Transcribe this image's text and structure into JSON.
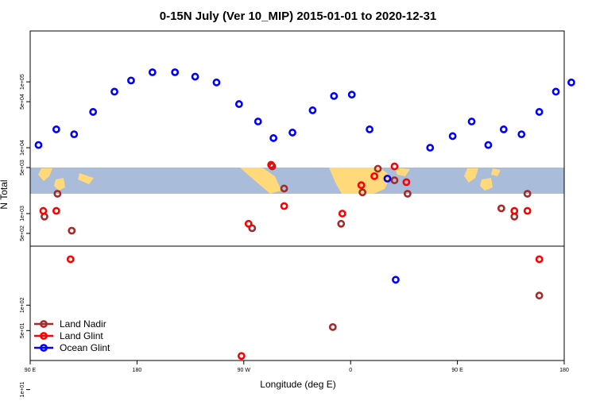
{
  "chart_data": {
    "type": "scatter",
    "title": "0-15N July (Ver 10_MIP)   2015-01-01 to 2020-12-31",
    "xlabel": "Longitude (deg E)",
    "ylabel": "N Total",
    "x_ticks": [
      {
        "value": 90,
        "label": "90 E"
      },
      {
        "value": 180,
        "label": "180"
      },
      {
        "value": 270,
        "label": "90 W"
      },
      {
        "value": 360,
        "label": "0"
      },
      {
        "value": 450,
        "label": "90 E"
      },
      {
        "value": 540,
        "label": "180"
      }
    ],
    "xlim": [
      90,
      540
    ],
    "y_lower_ticks": [
      {
        "value": 10,
        "label": "1e+01"
      },
      {
        "value": 50,
        "label": "5e+01"
      },
      {
        "value": 100,
        "label": "1e+02"
      },
      {
        "value": 500,
        "label": "5e+02"
      },
      {
        "value": 1000,
        "label": "1e+03"
      }
    ],
    "y_upper_ticks": [
      {
        "value": 5000,
        "label": "5e+03"
      },
      {
        "value": 10000,
        "label": "1e+04"
      },
      {
        "value": 50000,
        "label": "5e+04"
      },
      {
        "value": 100000,
        "label": "1e+05"
      }
    ],
    "y_scale": "log",
    "legend_position": "bottom-left",
    "series": [
      {
        "name": "Land Nadir",
        "color": "#a52a2a",
        "points": [
          [
            102,
            900
          ],
          [
            113,
            2000
          ],
          [
            125,
            550
          ],
          [
            277,
            600
          ],
          [
            294,
            5200
          ],
          [
            304,
            2400
          ],
          [
            345,
            55
          ],
          [
            352,
            700
          ],
          [
            370,
            2100
          ],
          [
            383,
            4800
          ],
          [
            397,
            3200
          ],
          [
            408,
            2000
          ],
          [
            487,
            1200
          ],
          [
            498,
            900
          ],
          [
            509,
            2000
          ],
          [
            519,
            130
          ]
        ]
      },
      {
        "name": "Land Glint",
        "color": "#ff0000",
        "points": [
          [
            101,
            1100
          ],
          [
            112,
            1100
          ],
          [
            124,
            350
          ],
          [
            268,
            25
          ],
          [
            274,
            700
          ],
          [
            293,
            5500
          ],
          [
            304,
            1300
          ],
          [
            353,
            1000
          ],
          [
            369,
            2700
          ],
          [
            380,
            3700
          ],
          [
            397,
            5200
          ],
          [
            407,
            3000
          ],
          [
            498,
            1100
          ],
          [
            509,
            1100
          ],
          [
            519,
            350
          ],
          [
            573,
            300
          ]
        ]
      },
      {
        "name": "Ocean Glint",
        "color": "#0000ff",
        "points": [
          [
            97,
            11000
          ],
          [
            112,
            19000
          ],
          [
            127,
            16000
          ],
          [
            143,
            35000
          ],
          [
            161,
            71000
          ],
          [
            175,
            105000
          ],
          [
            193,
            140000
          ],
          [
            212,
            140000
          ],
          [
            229,
            120000
          ],
          [
            247,
            98000
          ],
          [
            266,
            46000
          ],
          [
            282,
            25000
          ],
          [
            295,
            14000
          ],
          [
            311,
            17000
          ],
          [
            328,
            37000
          ],
          [
            346,
            61000
          ],
          [
            361,
            64000
          ],
          [
            376,
            19000
          ],
          [
            391,
            3400
          ],
          [
            398,
            200
          ],
          [
            427,
            10000
          ],
          [
            446,
            15000
          ],
          [
            462,
            25000
          ],
          [
            476,
            11000
          ],
          [
            489,
            19000
          ],
          [
            504,
            16000
          ],
          [
            519,
            35000
          ],
          [
            533,
            71000
          ],
          [
            546,
            98000
          ]
        ]
      }
    ]
  }
}
